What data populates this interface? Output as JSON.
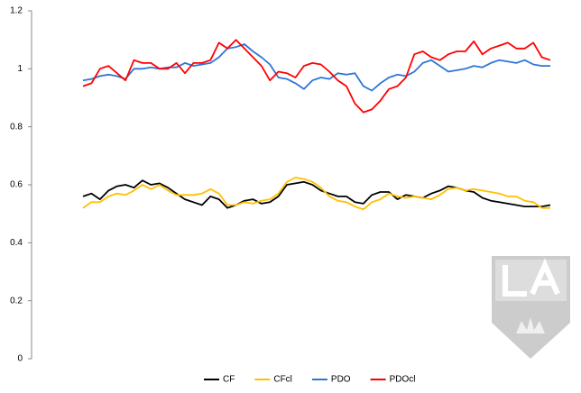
{
  "chart_data": {
    "type": "line",
    "categories": [
      null,
      null,
      null,
      null,
      null,
      null,
      null,
      null,
      null,
      null,
      null,
      null,
      null,
      null,
      null,
      null,
      null,
      null,
      null,
      null,
      null,
      null,
      null,
      null,
      null,
      null,
      null,
      null,
      null,
      null,
      null,
      null,
      null,
      null,
      null,
      null,
      null,
      null,
      null,
      null,
      null,
      null,
      null,
      null,
      null,
      null,
      null,
      null,
      null,
      null,
      null,
      null,
      null,
      null,
      null,
      null
    ],
    "series": [
      {
        "name": "CF",
        "color": "#000000",
        "values": [
          0.56,
          0.57,
          0.55,
          0.58,
          0.595,
          0.6,
          0.59,
          0.615,
          0.6,
          0.605,
          0.59,
          0.57,
          0.55,
          0.54,
          0.53,
          0.56,
          0.55,
          0.52,
          0.53,
          0.545,
          0.55,
          0.535,
          0.54,
          0.56,
          0.6,
          0.605,
          0.61,
          0.6,
          0.58,
          0.57,
          0.56,
          0.56,
          0.54,
          0.535,
          0.565,
          0.575,
          0.575,
          0.55,
          0.565,
          0.56,
          0.555,
          0.57,
          0.58,
          0.595,
          0.59,
          0.58,
          0.575,
          0.555,
          0.545,
          0.54,
          0.535,
          0.53,
          0.525,
          0.525,
          0.525,
          0.53
        ]
      },
      {
        "name": "CFcl",
        "color": "#ffc000",
        "values": [
          0.52,
          0.54,
          0.54,
          0.56,
          0.57,
          0.565,
          0.58,
          0.6,
          0.585,
          0.6,
          0.58,
          0.565,
          0.565,
          0.565,
          0.57,
          0.585,
          0.57,
          0.53,
          0.53,
          0.54,
          0.535,
          0.545,
          0.55,
          0.57,
          0.61,
          0.625,
          0.62,
          0.61,
          0.59,
          0.56,
          0.545,
          0.54,
          0.525,
          0.515,
          0.54,
          0.55,
          0.57,
          0.56,
          0.555,
          0.56,
          0.555,
          0.55,
          0.565,
          0.585,
          0.59,
          0.58,
          0.585,
          0.58,
          0.575,
          0.57,
          0.56,
          0.56,
          0.545,
          0.54,
          0.52,
          0.52
        ]
      },
      {
        "name": "PDO",
        "color": "#2e75d6",
        "values": [
          0.96,
          0.965,
          0.975,
          0.98,
          0.975,
          0.965,
          1.0,
          1.0,
          1.005,
          1.0,
          1.005,
          1.005,
          1.02,
          1.01,
          1.015,
          1.02,
          1.04,
          1.07,
          1.075,
          1.085,
          1.06,
          1.04,
          1.015,
          0.97,
          0.965,
          0.95,
          0.93,
          0.96,
          0.97,
          0.965,
          0.985,
          0.98,
          0.985,
          0.94,
          0.925,
          0.95,
          0.97,
          0.98,
          0.975,
          0.99,
          1.02,
          1.03,
          1.01,
          0.99,
          0.995,
          1.0,
          1.01,
          1.005,
          1.02,
          1.03,
          1.025,
          1.02,
          1.03,
          1.015,
          1.01,
          1.01
        ]
      },
      {
        "name": "PDOcl",
        "color": "#ff0000",
        "values": [
          0.94,
          0.95,
          1.0,
          1.01,
          0.985,
          0.96,
          1.03,
          1.02,
          1.02,
          1.0,
          1.0,
          1.02,
          0.985,
          1.02,
          1.02,
          1.03,
          1.09,
          1.07,
          1.1,
          1.07,
          1.04,
          1.01,
          0.96,
          0.99,
          0.985,
          0.97,
          1.01,
          1.02,
          1.015,
          0.99,
          0.96,
          0.94,
          0.88,
          0.85,
          0.86,
          0.89,
          0.93,
          0.94,
          0.97,
          1.05,
          1.06,
          1.04,
          1.03,
          1.05,
          1.06,
          1.06,
          1.095,
          1.05,
          1.07,
          1.08,
          1.09,
          1.07,
          1.07,
          1.09,
          1.04,
          1.03
        ]
      }
    ],
    "ylim": [
      0,
      1.2
    ],
    "yticks": [
      0,
      0.2,
      0.4,
      0.6,
      0.8,
      1,
      1.2
    ],
    "grid": false,
    "legend": "bottom"
  }
}
